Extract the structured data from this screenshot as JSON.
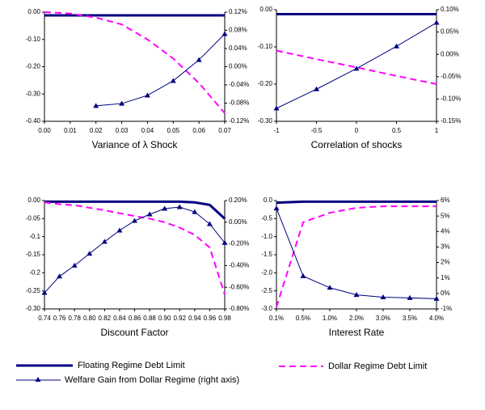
{
  "chart_data": [
    {
      "type": "line",
      "x_label": "Variance of λ Shock",
      "x": [
        0,
        0.01,
        0.02,
        0.03,
        0.04,
        0.05,
        0.06,
        0.07
      ],
      "xlim": [
        0,
        0.07
      ],
      "xticks": [
        {
          "value": 0,
          "label": "0.00"
        },
        0.01,
        0.02,
        0.03,
        0.04,
        0.05,
        0.06,
        0.07
      ],
      "ylim": [
        -0.4,
        0
      ],
      "yticks": [
        {
          "value": 0,
          "label": "0.00"
        },
        {
          "value": -0.1,
          "label": "-0.10"
        },
        {
          "value": -0.2,
          "label": "-0.20"
        },
        {
          "value": -0.3,
          "label": "-0.30"
        },
        {
          "value": -0.4,
          "label": "-0.40"
        }
      ],
      "y2lim": [
        -0.12,
        0.12
      ],
      "y2ticks": [
        {
          "value": 0.12,
          "label": "0.12%"
        },
        {
          "value": 0.08,
          "label": "0.08%"
        },
        {
          "value": 0.04,
          "label": "0.04%"
        },
        {
          "value": 0,
          "label": "0.00%"
        },
        {
          "value": -0.04,
          "label": "-0.04%"
        },
        {
          "value": -0.08,
          "label": "-0.08%"
        },
        {
          "value": -0.12,
          "label": "-0.12%"
        }
      ],
      "series": [
        {
          "name": "Floating Regime Debt Limit",
          "color": "#000080",
          "width": 3,
          "values": [
            -0.012,
            -0.012,
            -0.012,
            -0.012,
            -0.012,
            -0.012,
            -0.012,
            -0.012
          ]
        },
        {
          "name": "Dollar Regime Debt Limit",
          "color": "#ff00ff",
          "width": 2,
          "dashed": true,
          "values": [
            0,
            -0.005,
            -0.02,
            -0.045,
            -0.1,
            -0.17,
            -0.26,
            -0.37
          ]
        },
        {
          "name": "Welfare Gain from Dollar Regime (right axis)",
          "color": "#000080",
          "width": 1,
          "axis": "y2",
          "marker": "triangle",
          "values": [
            null,
            null,
            -0.086,
            -0.081,
            -0.063,
            -0.031,
            0.015,
            0.072
          ]
        }
      ]
    },
    {
      "type": "line",
      "x_label": "Correlation of shocks",
      "x": [
        -1,
        -0.5,
        0,
        0.5,
        1
      ],
      "xlim": [
        -1,
        1
      ],
      "xticks": [
        -1,
        -0.5,
        0,
        0.5,
        1
      ],
      "ylim": [
        -0.3,
        0
      ],
      "yticks": [
        {
          "value": 0,
          "label": "0.00"
        },
        {
          "value": -0.1,
          "label": "-0.10"
        },
        {
          "value": -0.2,
          "label": "-0.20"
        },
        {
          "value": -0.3,
          "label": "-0.30"
        }
      ],
      "y2lim": [
        -0.15,
        0.1
      ],
      "y2ticks": [
        {
          "value": 0.1,
          "label": "0.10%"
        },
        {
          "value": 0.05,
          "label": "0.05%"
        },
        {
          "value": 0,
          "label": "0.00%"
        },
        {
          "value": -0.05,
          "label": "-0.05%"
        },
        {
          "value": -0.1,
          "label": "-0.10%"
        },
        {
          "value": -0.15,
          "label": "-0.15%"
        }
      ],
      "series": [
        {
          "name": "Floating Regime Debt Limit",
          "color": "#000080",
          "width": 3,
          "values": [
            -0.012,
            -0.012,
            -0.012,
            -0.012,
            -0.012
          ]
        },
        {
          "name": "Dollar Regime Debt Limit",
          "color": "#ff00ff",
          "width": 2,
          "dashed": true,
          "values": [
            -0.11,
            -0.133,
            -0.155,
            -0.178,
            -0.2
          ]
        },
        {
          "name": "Welfare Gain from Dollar Regime (right axis)",
          "color": "#000080",
          "width": 1,
          "axis": "y2",
          "marker": "triangle",
          "values": [
            -0.121,
            -0.078,
            -0.032,
            0.018,
            0.071
          ]
        }
      ]
    },
    {
      "type": "line",
      "x_label": "Discount Factor",
      "x": [
        0.74,
        0.76,
        0.78,
        0.8,
        0.82,
        0.84,
        0.86,
        0.88,
        0.9,
        0.92,
        0.94,
        0.96,
        0.98
      ],
      "xlim": [
        0.74,
        0.98
      ],
      "xticks": [
        0.74,
        0.76,
        0.78,
        {
          "value": 0.8,
          "label": "0.80"
        },
        0.82,
        0.84,
        0.86,
        0.88,
        {
          "value": 0.9,
          "label": "0.90"
        },
        0.92,
        0.94,
        0.96,
        0.98
      ],
      "ylim": [
        -0.3,
        0
      ],
      "yticks": [
        {
          "value": 0,
          "label": "0.00"
        },
        -0.05,
        -0.1,
        -0.15,
        -0.2,
        -0.25,
        {
          "value": -0.3,
          "label": "-0.30"
        }
      ],
      "y2lim": [
        -0.8,
        0.2
      ],
      "y2ticks": [
        {
          "value": 0.2,
          "label": "0.20%"
        },
        {
          "value": 0,
          "label": "0.00%"
        },
        {
          "value": -0.2,
          "label": "-0.20%"
        },
        {
          "value": -0.4,
          "label": "-0.40%"
        },
        {
          "value": -0.6,
          "label": "-0.60%"
        },
        {
          "value": -0.8,
          "label": "-0.80%"
        }
      ],
      "series": [
        {
          "name": "Floating Regime Debt Limit",
          "color": "#000080",
          "width": 3,
          "values": [
            -0.003,
            -0.003,
            -0.003,
            -0.003,
            -0.003,
            -0.003,
            -0.003,
            -0.003,
            -0.003,
            -0.003,
            -0.005,
            -0.012,
            -0.05
          ]
        },
        {
          "name": "Dollar Regime Debt Limit",
          "color": "#ff00ff",
          "width": 2,
          "dashed": true,
          "values": [
            -0.005,
            -0.01,
            -0.013,
            -0.02,
            -0.027,
            -0.035,
            -0.043,
            -0.05,
            -0.06,
            -0.075,
            -0.095,
            -0.13,
            -0.26
          ]
        },
        {
          "name": "Welfare Gain from Dollar Regime (right axis)",
          "color": "#000080",
          "width": 1,
          "axis": "y2",
          "marker": "triangle",
          "values": [
            -0.651,
            -0.5,
            -0.4,
            -0.29,
            -0.18,
            -0.076,
            0.013,
            0.073,
            0.125,
            0.14,
            0.095,
            -0.016,
            -0.19
          ]
        }
      ]
    },
    {
      "type": "line",
      "x_label": "Interest Rate",
      "categories": [
        "0.1%",
        "0.5%",
        "1.0%",
        "2.0%",
        "3.0%",
        "3.5%",
        "4.0%"
      ],
      "ylim": [
        -3,
        0
      ],
      "yticks": [
        {
          "value": 0,
          "label": "0.0"
        },
        -0.5,
        {
          "value": -1,
          "label": "-1.0"
        },
        -1.5,
        {
          "value": -2,
          "label": "-2.0"
        },
        -2.5,
        {
          "value": -3,
          "label": "-3.0"
        }
      ],
      "y2lim": [
        -1,
        6
      ],
      "y2ticks": [
        {
          "value": 6,
          "label": "6%"
        },
        {
          "value": 5,
          "label": "5%"
        },
        {
          "value": 4,
          "label": "4%"
        },
        {
          "value": 3,
          "label": "3%"
        },
        {
          "value": 2,
          "label": "2%"
        },
        {
          "value": 1,
          "label": "1%"
        },
        {
          "value": 0,
          "label": "0%"
        },
        {
          "value": -1,
          "label": "-1%"
        }
      ],
      "series": [
        {
          "name": "Floating Regime Debt Limit",
          "color": "#000080",
          "width": 3,
          "values": [
            -0.06,
            -0.03,
            -0.03,
            -0.03,
            -0.03,
            -0.03,
            -0.03
          ]
        },
        {
          "name": "Dollar Regime Debt Limit",
          "color": "#ff00ff",
          "width": 2,
          "dashed": true,
          "values": [
            -2.95,
            -0.6,
            -0.34,
            -0.2,
            -0.16,
            -0.16,
            -0.16
          ]
        },
        {
          "name": "Welfare Gain from Dollar Regime (right axis)",
          "color": "#000080",
          "width": 1,
          "axis": "y2",
          "marker": "triangle",
          "values": [
            5.5,
            1.12,
            0.37,
            -0.09,
            -0.24,
            -0.29,
            -0.34
          ]
        }
      ]
    }
  ]
}
